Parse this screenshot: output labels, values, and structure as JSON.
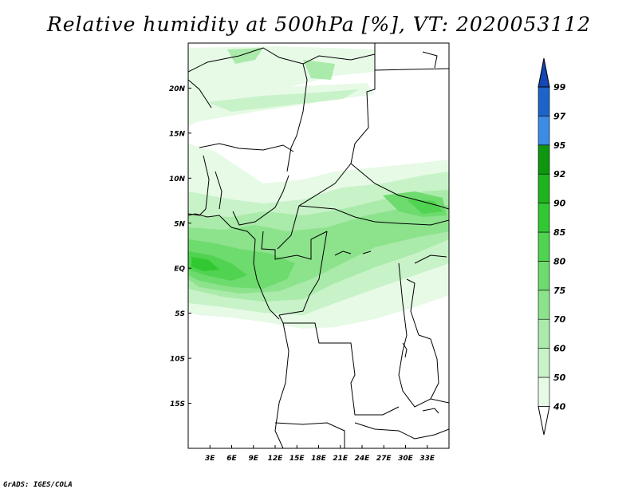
{
  "title": "Relative humidity at 500hPa [%], VT: 2020053112",
  "credit": "GrADS: IGES/COLA",
  "map": {
    "lon_range": [
      0,
      36
    ],
    "lat_range": [
      -20,
      25
    ],
    "lat_labels": [
      {
        "lat": 20,
        "label": "20N"
      },
      {
        "lat": 15,
        "label": "15N"
      },
      {
        "lat": 10,
        "label": "10N"
      },
      {
        "lat": 5,
        "label": "5N"
      },
      {
        "lat": 0,
        "label": "EQ"
      },
      {
        "lat": -5,
        "label": "5S"
      },
      {
        "lat": -10,
        "label": "10S"
      },
      {
        "lat": -15,
        "label": "15S"
      }
    ],
    "lon_labels": [
      {
        "lon": 3,
        "label": "3E"
      },
      {
        "lon": 6,
        "label": "6E"
      },
      {
        "lon": 9,
        "label": "9E"
      },
      {
        "lon": 12,
        "label": "12E"
      },
      {
        "lon": 15,
        "label": "15E"
      },
      {
        "lon": 18,
        "label": "18E"
      },
      {
        "lon": 21,
        "label": "21E"
      },
      {
        "lon": 24,
        "label": "24E"
      },
      {
        "lon": 27,
        "label": "27E"
      },
      {
        "lon": 30,
        "label": "30E"
      },
      {
        "lon": 33,
        "label": "33E"
      }
    ]
  },
  "colorbar": {
    "levels": [
      "40",
      "50",
      "60",
      "70",
      "75",
      "80",
      "85",
      "90",
      "92",
      "95",
      "97",
      "99"
    ],
    "colors": [
      "#ffffff",
      "#e6fae6",
      "#c8f2c8",
      "#aaeaaa",
      "#8ce38c",
      "#6edb6e",
      "#50d350",
      "#32c832",
      "#1eb41e",
      "#0f960f",
      "#3c8ce6",
      "#1e64c8",
      "#1446b4"
    ]
  }
}
